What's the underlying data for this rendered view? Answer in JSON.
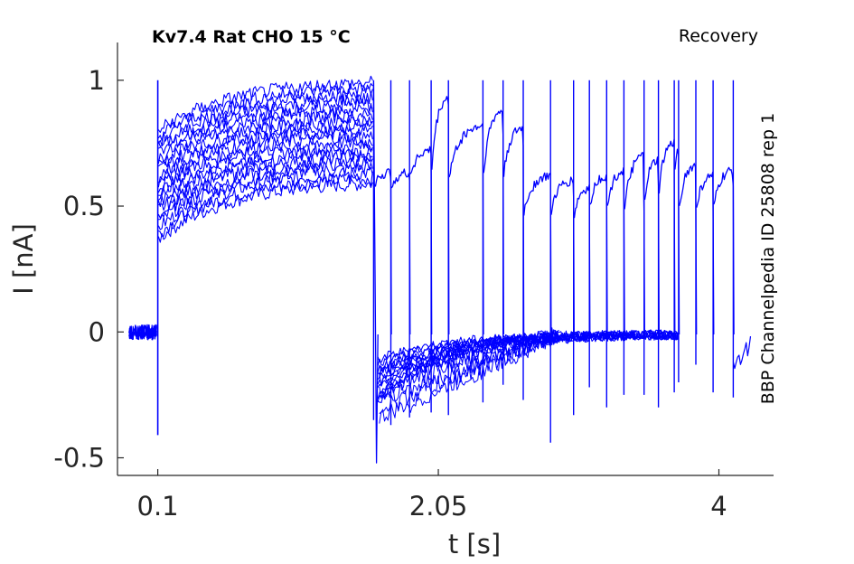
{
  "chart_data": {
    "type": "line",
    "title": "Kv7.4  Rat  CHO  15 °C",
    "subtitle": "Recovery",
    "annotation": "BBP Channelpedia ID 25808 rep 1",
    "xlabel": "t [s]",
    "ylabel": "I [nA]",
    "xlim": [
      -0.18,
      4.38
    ],
    "ylim": [
      -0.57,
      1.15
    ],
    "x_ticks": [
      0.1,
      2.05,
      4
    ],
    "x_tick_labels": [
      "0.1",
      "2.05",
      "4"
    ],
    "y_ticks": [
      1,
      0.5,
      0,
      -0.5
    ],
    "y_tick_labels": [
      "1",
      "0.5",
      "0",
      "-0.5"
    ],
    "grid": false,
    "line_color": "#0000ff",
    "axis_color": "#262626",
    "series_count": 20,
    "baseline": {
      "x_start": -0.0999,
      "x_end": 0.093,
      "value": -0.001
    },
    "initial_spike": {
      "x": 0.1,
      "top": 1.0,
      "bottom": -0.41
    },
    "prepulse": {
      "x_start": 0.105,
      "x_end": 1.6,
      "start_low": 0.37,
      "start_high": 0.8,
      "end_low": 0.59,
      "end_high": 0.99
    },
    "prepulse_offset": {
      "x": 1.62,
      "bottom": -0.52
    },
    "recovery_shelf": {
      "x_start": 1.63,
      "x_end": 3.72,
      "value": -0.01
    },
    "recovery_traces": [
      {
        "onset": 1.6,
        "onset_low": 0.58,
        "end": 1.72,
        "end_high": 0.63,
        "end_low": 0.59,
        "spike_bottom": -0.35
      },
      {
        "onset": 1.72,
        "onset_low": 0.58,
        "end": 1.85,
        "end_high": 0.63,
        "end_low": 0.6,
        "spike_bottom": -0.37
      },
      {
        "onset": 1.85,
        "onset_low": 0.61,
        "end": 2.0,
        "end_high": 0.72,
        "end_low": 0.63,
        "spike_bottom": -0.34
      },
      {
        "onset": 2.0,
        "onset_low": 0.6,
        "end": 2.12,
        "end_high": 0.93,
        "end_low": 0.9,
        "spike_bottom": -0.32
      },
      {
        "onset": 2.12,
        "onset_low": 0.6,
        "end": 2.36,
        "end_high": 0.82,
        "end_low": 0.78,
        "spike_bottom": -0.33
      },
      {
        "onset": 2.36,
        "onset_low": 0.6,
        "end": 2.5,
        "end_high": 0.88,
        "end_low": 0.78,
        "spike_bottom": -0.28
      },
      {
        "onset": 2.5,
        "onset_low": 0.6,
        "end": 2.64,
        "end_high": 0.81,
        "end_low": 0.74,
        "spike_bottom": -0.21
      },
      {
        "onset": 2.64,
        "onset_low": 0.46,
        "end": 2.83,
        "end_high": 0.62,
        "end_low": 0.56,
        "spike_bottom": -0.27
      },
      {
        "onset": 2.83,
        "onset_low": 0.47,
        "end": 2.99,
        "end_high": 0.6,
        "end_low": 0.53,
        "spike_bottom": -0.44
      },
      {
        "onset": 2.99,
        "onset_low": 0.44,
        "end": 3.1,
        "end_high": 0.57,
        "end_low": 0.48,
        "spike_bottom": -0.33
      },
      {
        "onset": 3.1,
        "onset_low": 0.49,
        "end": 3.22,
        "end_high": 0.62,
        "end_low": 0.56,
        "spike_bottom": -0.22
      },
      {
        "onset": 3.22,
        "onset_low": 0.46,
        "end": 3.34,
        "end_high": 0.64,
        "end_low": 0.5,
        "spike_bottom": -0.3
      },
      {
        "onset": 3.34,
        "onset_low": 0.45,
        "end": 3.48,
        "end_high": 0.7,
        "end_low": 0.47,
        "spike_bottom": -0.25
      },
      {
        "onset": 3.48,
        "onset_low": 0.5,
        "end": 3.58,
        "end_high": 0.68,
        "end_low": 0.58,
        "spike_bottom": -0.25
      },
      {
        "onset": 3.58,
        "onset_low": 0.53,
        "end": 3.69,
        "end_high": 0.75,
        "end_low": 0.6,
        "spike_bottom": -0.3
      },
      {
        "onset": 3.69,
        "onset_low": 0.57,
        "end": 3.72,
        "end_high": 0.72,
        "end_low": 0.56,
        "spike_bottom": -0.24
      },
      {
        "onset": 3.72,
        "onset_low": 0.47,
        "end": 3.84,
        "end_high": 0.66,
        "end_low": 0.48,
        "spike_bottom": -0.2
      },
      {
        "onset": 3.84,
        "onset_low": 0.47,
        "end": 3.96,
        "end_high": 0.62,
        "end_low": 0.48,
        "spike_bottom": -0.13
      },
      {
        "onset": 3.96,
        "onset_low": 0.47,
        "end": 4.1,
        "end_high": 0.64,
        "end_low": 0.58,
        "spike_bottom": -0.24
      },
      {
        "onset": 4.1,
        "onset_low": 0.5,
        "end": 4.1,
        "end_high": 0.66,
        "end_low": 0.63,
        "spike_bottom": -0.26
      }
    ],
    "tail_end": {
      "x": 4.22,
      "value": -0.05
    }
  }
}
